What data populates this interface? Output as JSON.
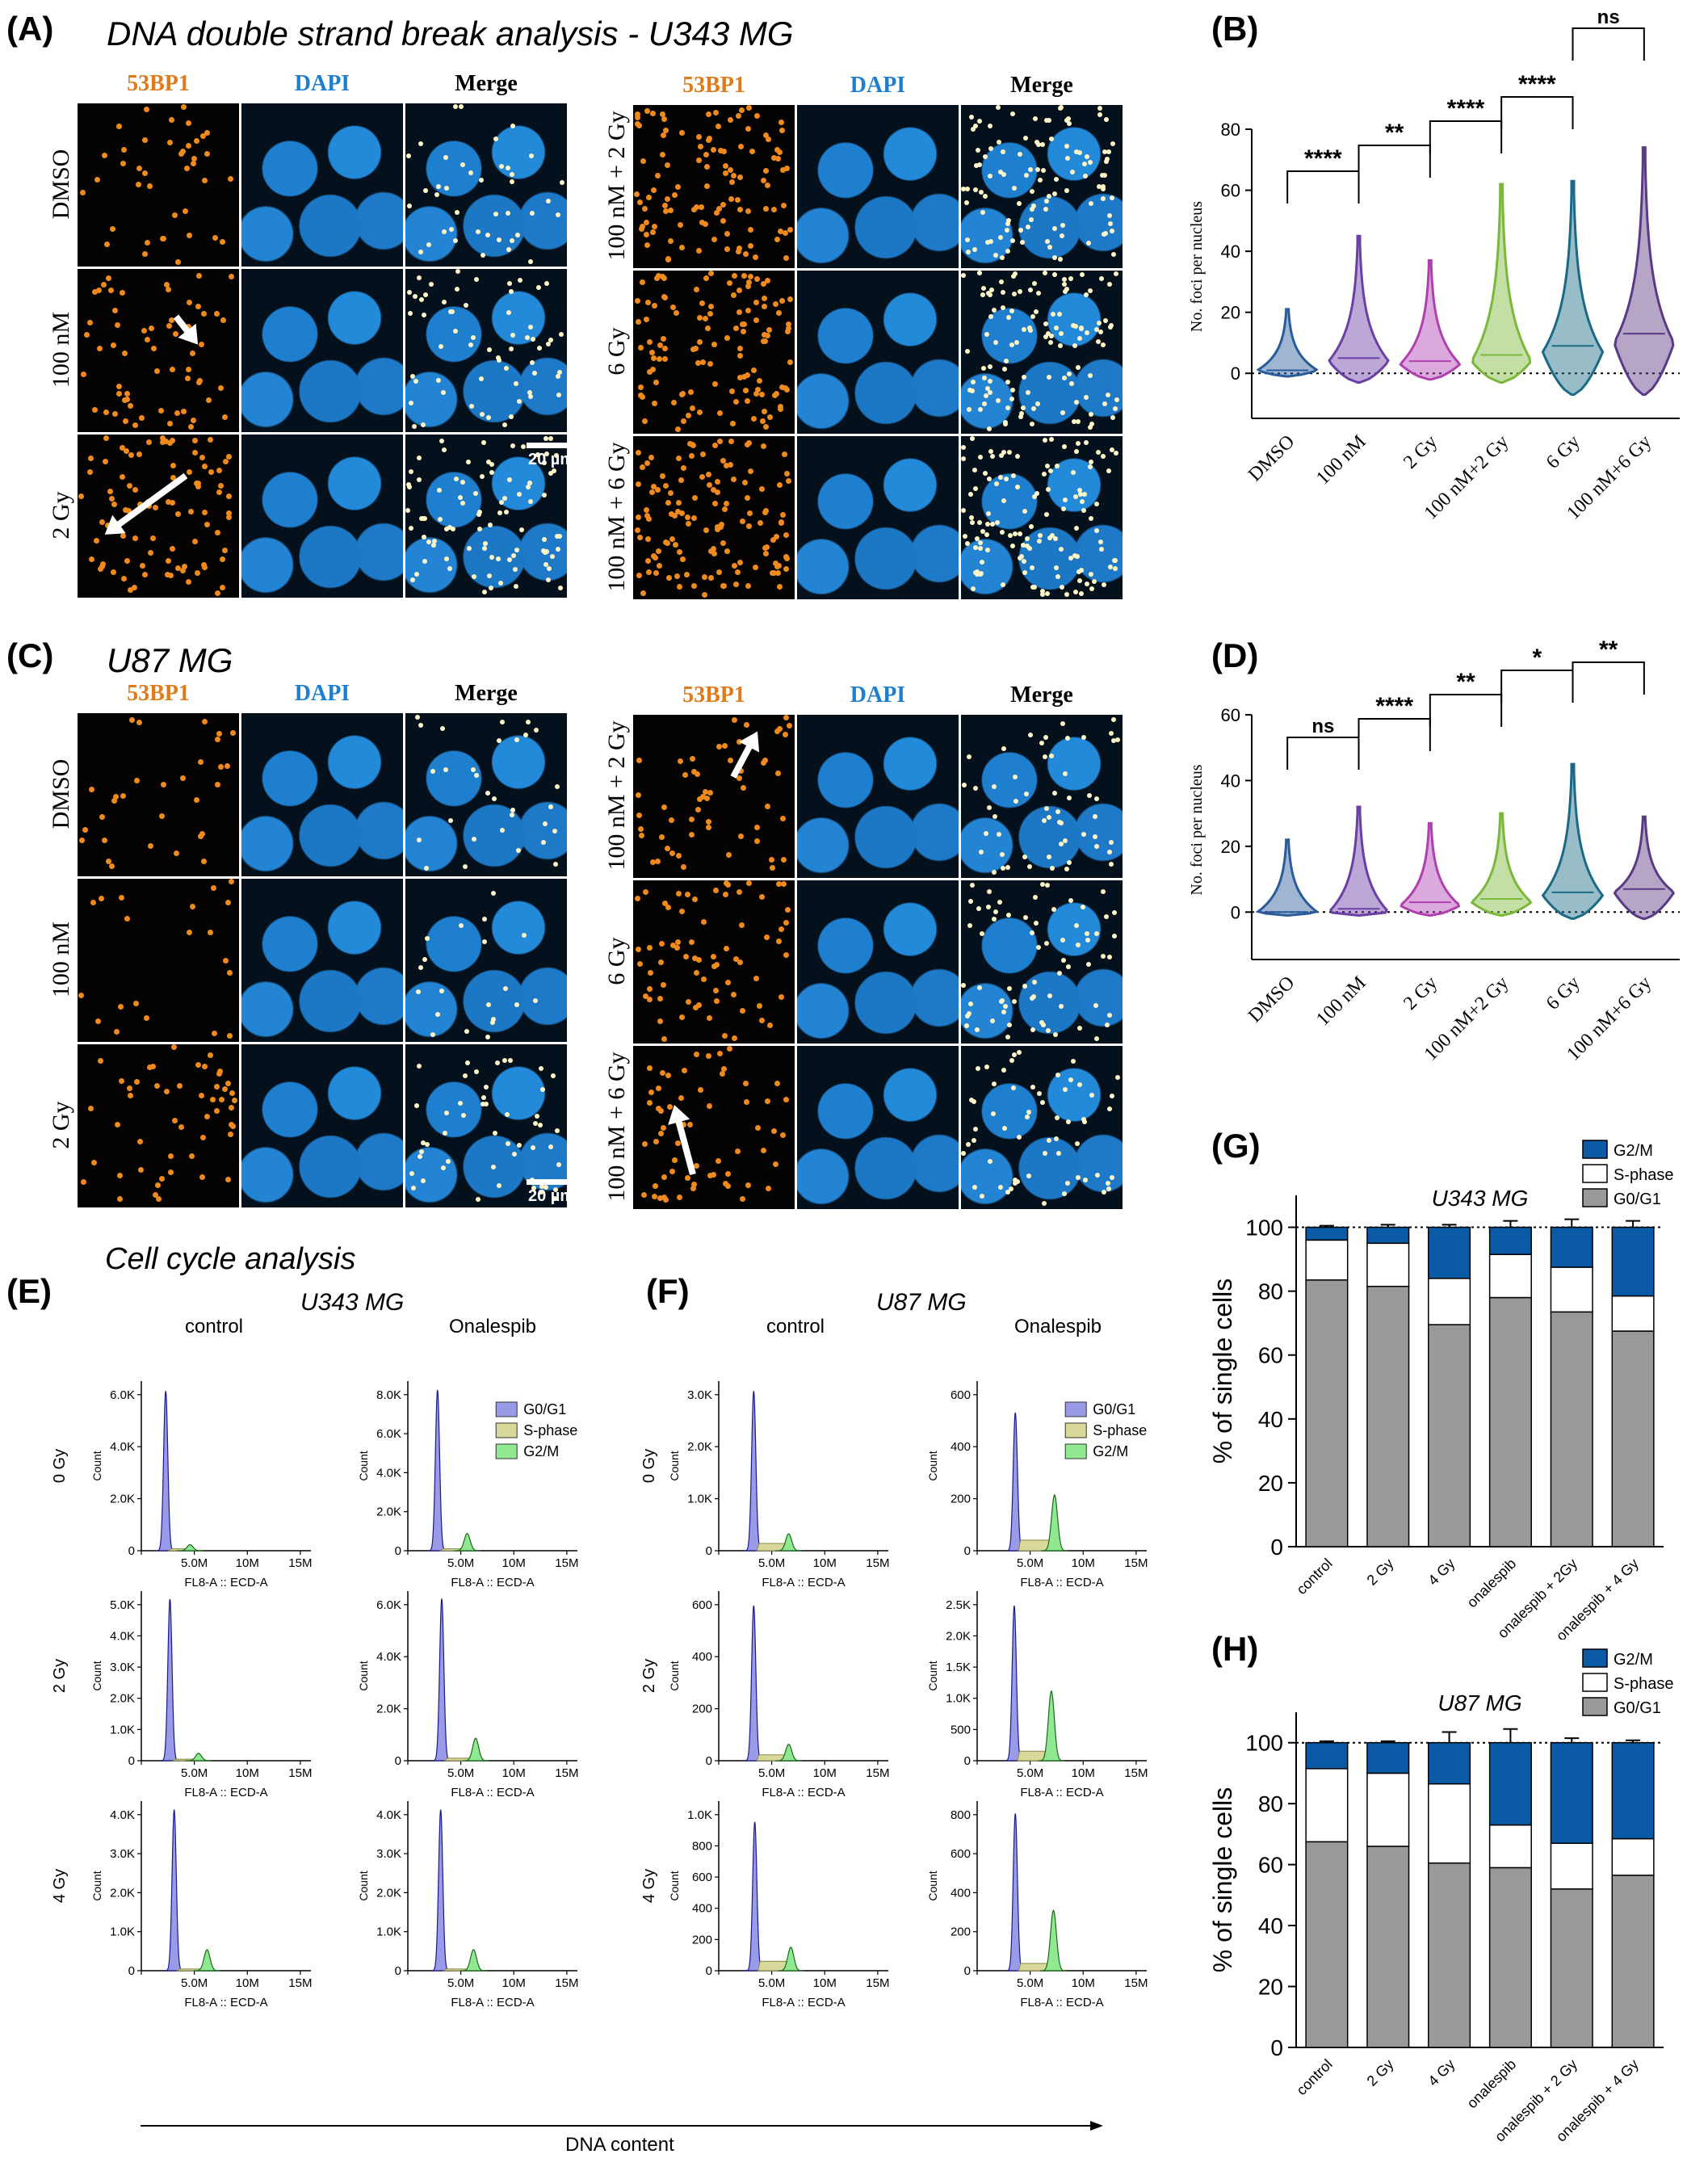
{
  "panel_A": {
    "letter": "(A)",
    "title": "DNA double strand break analysis - U343 MG",
    "left_block": {
      "columns": [
        "53BP1",
        "DAPI",
        "Merge"
      ],
      "rows": [
        "DMSO",
        "100 nM",
        "2 Gy"
      ],
      "scale_bar": "20 µm"
    },
    "right_block": {
      "columns": [
        "53BP1",
        "DAPI",
        "Merge"
      ],
      "rows": [
        "100 nM + 2 Gy",
        "6 Gy",
        "100 nM + 6 Gy"
      ]
    }
  },
  "panel_C": {
    "letter": "(C)",
    "title": "U87 MG",
    "left_block": {
      "columns": [
        "53BP1",
        "DAPI",
        "Merge"
      ],
      "rows": [
        "DMSO",
        "100 nM",
        "2 Gy"
      ],
      "scale_bar": "20 µm"
    },
    "right_block": {
      "columns": [
        "53BP1",
        "DAPI",
        "Merge"
      ],
      "rows": [
        "100 nM + 2 Gy",
        "6 Gy",
        "100 nM + 6 Gy"
      ]
    }
  },
  "cell_cycle": {
    "title": "Cell cycle analysis",
    "x_axis_arrow_label": "DNA content"
  },
  "colors": {
    "foci_orange": "#f08a1c",
    "dapi_blue": "#2389d9",
    "col_header_orange": "#e07a1a",
    "col_header_blue": "#1f7fcf",
    "g2m_blue": "#0a5aa6",
    "g0g1_grey": "#999999",
    "hist_g0g1": "#9a9be8",
    "hist_s": "#d8d89a",
    "hist_g2m": "#90e890"
  },
  "chart_data": [
    {
      "id": "B",
      "letter": "(B)",
      "type": "violin",
      "ylabel": "No. foci per nucleus",
      "ylim": [
        0,
        80
      ],
      "yticks": [
        0,
        20,
        40,
        60,
        80
      ],
      "categories": [
        "DMSO",
        "100 nM",
        "2 Gy",
        "100 nM+2 Gy",
        "6 Gy",
        "100 nM+6 Gy"
      ],
      "colors": [
        "#2a5c9a",
        "#6b3fa6",
        "#b040b0",
        "#7ab83a",
        "#1a6a86",
        "#5a3a86"
      ],
      "max": [
        21,
        45,
        37,
        62,
        63,
        74
      ],
      "min": [
        -1,
        -3,
        -2,
        -3,
        -7,
        -7
      ],
      "median": [
        1,
        5,
        4,
        6,
        9,
        13
      ],
      "widest_at": [
        1,
        4,
        3,
        4,
        7,
        10
      ],
      "significance": [
        {
          "pair": [
            0,
            1
          ],
          "label": "****"
        },
        {
          "pair": [
            1,
            2
          ],
          "label": "**"
        },
        {
          "pair": [
            2,
            3
          ],
          "label": "****"
        },
        {
          "pair": [
            3,
            4
          ],
          "label": "****"
        },
        {
          "pair": [
            4,
            5
          ],
          "label": "ns"
        }
      ]
    },
    {
      "id": "D",
      "letter": "(D)",
      "type": "violin",
      "ylabel": "No. foci per nucleus",
      "ylim": [
        0,
        60
      ],
      "yticks": [
        0,
        20,
        40,
        60
      ],
      "categories": [
        "DMSO",
        "100 nM",
        "2 Gy",
        "100 nM+2 Gy",
        "6 Gy",
        "100 nM+6 Gy"
      ],
      "colors": [
        "#2a5c9a",
        "#6b3fa6",
        "#b040b0",
        "#7ab83a",
        "#1a6a86",
        "#5a3a86"
      ],
      "max": [
        22,
        32,
        27,
        30,
        45,
        29
      ],
      "min": [
        -1,
        -1,
        -1,
        -1,
        -2,
        -2
      ],
      "median": [
        0,
        1,
        3,
        4,
        6,
        7
      ],
      "widest_at": [
        0,
        0,
        2,
        3,
        5,
        6
      ],
      "significance": [
        {
          "pair": [
            0,
            1
          ],
          "label": "ns"
        },
        {
          "pair": [
            1,
            2
          ],
          "label": "****"
        },
        {
          "pair": [
            2,
            3
          ],
          "label": "**"
        },
        {
          "pair": [
            3,
            4
          ],
          "label": "*"
        },
        {
          "pair": [
            4,
            5
          ],
          "label": "**"
        }
      ]
    },
    {
      "id": "G",
      "letter": "(G)",
      "type": "stacked_bar",
      "title": "U343 MG",
      "ylabel": "% of single cells",
      "ylim": [
        0,
        110
      ],
      "yticks": [
        0,
        20,
        40,
        60,
        80,
        100
      ],
      "categories": [
        "control",
        "2 Gy",
        "4 Gy",
        "onalespib",
        "onalespib + 2Gy",
        "onalespib + 4 Gy"
      ],
      "legend": [
        "G2/M",
        "S-phase",
        "G0/G1"
      ],
      "series": [
        {
          "name": "G0/G1",
          "values": [
            83.5,
            81.5,
            69.5,
            78,
            73.5,
            67.5
          ],
          "err": [
            1.2,
            1.5,
            2,
            1.8,
            2.2,
            2.2
          ]
        },
        {
          "name": "S-phase",
          "values": [
            12.5,
            13.5,
            14.5,
            13.5,
            14,
            11
          ],
          "err": [
            1.5,
            1.2,
            3,
            0.8,
            1,
            0.8
          ]
        },
        {
          "name": "G2/M",
          "values": [
            4,
            5,
            16,
            8.5,
            12.5,
            21.5
          ],
          "err": [
            0.5,
            0.8,
            0.8,
            2,
            2.5,
            2
          ]
        }
      ]
    },
    {
      "id": "H",
      "letter": "(H)",
      "type": "stacked_bar",
      "title": "U87 MG",
      "ylabel": "% of single cells",
      "ylim": [
        0,
        110
      ],
      "yticks": [
        0,
        20,
        40,
        60,
        80,
        100
      ],
      "categories": [
        "control",
        "2 Gy",
        "4 Gy",
        "onalespib",
        "onalespib + 2 Gy",
        "onalespib + 4 Gy"
      ],
      "legend": [
        "G2/M",
        "S-phase",
        "G0/G1"
      ],
      "series": [
        {
          "name": "G0/G1",
          "values": [
            67.5,
            66,
            60.5,
            59,
            52,
            56.5
          ],
          "err": [
            1.5,
            2,
            1.2,
            1.2,
            1.5,
            0.5
          ]
        },
        {
          "name": "S-phase",
          "values": [
            24,
            24,
            26,
            14,
            15,
            12
          ],
          "err": [
            1,
            2.5,
            0.8,
            3,
            0.5,
            1
          ]
        },
        {
          "name": "G2/M",
          "values": [
            8.5,
            10,
            13.5,
            27,
            33,
            31.5
          ],
          "err": [
            0.5,
            0.5,
            3.5,
            4.5,
            1.5,
            0.8
          ]
        }
      ]
    },
    {
      "id": "E",
      "letter": "(E)",
      "type": "area",
      "title": "U343 MG",
      "columns": [
        "control",
        "Onalespib"
      ],
      "rows": [
        "0 Gy",
        "2 Gy",
        "4 Gy"
      ],
      "xlabel": "FL8-A :: ECD-A",
      "ylabel": "Count",
      "xticks": [
        "0",
        "5.0M",
        "10M",
        "15M"
      ],
      "xlim": [
        0,
        16
      ],
      "legend": [
        "G0/G1",
        "S-phase",
        "G2/M"
      ],
      "histograms": [
        {
          "row": "0 Gy",
          "col": "control",
          "yticks": [
            "0",
            "2.0K",
            "4.0K",
            "6.0K"
          ],
          "ymax": 6.8,
          "g1_pos": 2.3,
          "g1_h": 6.6,
          "g2_pos": 4.6,
          "g2_h": 0.25,
          "s_h": 0.08
        },
        {
          "row": "0 Gy",
          "col": "Onalespib",
          "yticks": [
            "0",
            "2.0K",
            "4.0K",
            "6.0K",
            "8.0K"
          ],
          "ymax": 8.6,
          "g1_pos": 2.8,
          "g1_h": 8.4,
          "g2_pos": 5.6,
          "g2_h": 0.9,
          "s_h": 0.1
        },
        {
          "row": "2 Gy",
          "col": "control",
          "yticks": [
            "0",
            "1.0K",
            "2.0K",
            "3.0K",
            "4.0K",
            "5.0K"
          ],
          "ymax": 5.6,
          "g1_pos": 2.7,
          "g1_h": 5.5,
          "g2_pos": 5.4,
          "g2_h": 0.25,
          "s_h": 0.05
        },
        {
          "row": "2 Gy",
          "col": "Onalespib",
          "yticks": [
            "0",
            "2.0K",
            "4.0K",
            "6.0K"
          ],
          "ymax": 6.6,
          "g1_pos": 3.2,
          "g1_h": 6.5,
          "g2_pos": 6.4,
          "g2_h": 0.9,
          "s_h": 0.1
        },
        {
          "row": "4 Gy",
          "col": "control",
          "yticks": [
            "0",
            "1.0K",
            "2.0K",
            "3.0K",
            "4.0K"
          ],
          "ymax": 4.7,
          "g1_pos": 3.1,
          "g1_h": 4.6,
          "g2_pos": 6.2,
          "g2_h": 0.6,
          "s_h": 0.05
        },
        {
          "row": "4 Gy",
          "col": "Onalespib",
          "yticks": [
            "0",
            "1.0K",
            "2.0K",
            "3.0K",
            "4.0K"
          ],
          "ymax": 4.7,
          "g1_pos": 3.1,
          "g1_h": 4.6,
          "g2_pos": 6.2,
          "g2_h": 0.6,
          "s_h": 0.05
        }
      ]
    },
    {
      "id": "F",
      "letter": "(F)",
      "type": "area",
      "title": "U87 MG",
      "columns": [
        "control",
        "Onalespib"
      ],
      "rows": [
        "0 Gy",
        "2 Gy",
        "4 Gy"
      ],
      "xlabel": "FL8-A :: ECD-A",
      "ylabel": "Count",
      "xticks": [
        "0",
        "5.0M",
        "10M",
        "15M"
      ],
      "xlim": [
        0,
        16
      ],
      "legend": [
        "G0/G1",
        "S-phase",
        "G2/M"
      ],
      "histograms": [
        {
          "row": "0 Gy",
          "col": "control",
          "yticks": [
            "0",
            "1.0K",
            "2.0K",
            "3.0K"
          ],
          "ymax": 3.4,
          "g1_pos": 3.3,
          "g1_h": 3.3,
          "g2_pos": 6.6,
          "g2_h": 0.35,
          "s_h": 0.15
        },
        {
          "row": "0 Gy",
          "col": "Onalespib",
          "yticks": [
            "0",
            "200",
            "400",
            "600"
          ],
          "ymax": 620,
          "g1_pos": 3.6,
          "g1_h": 520,
          "g2_pos": 7.3,
          "g2_h": 210,
          "s_h": 40
        },
        {
          "row": "2 Gy",
          "col": "control",
          "yticks": [
            "0",
            "200",
            "400",
            "600"
          ],
          "ymax": 700,
          "g1_pos": 3.3,
          "g1_h": 660,
          "g2_pos": 6.6,
          "g2_h": 70,
          "s_h": 25
        },
        {
          "row": "2 Gy",
          "col": "Onalespib",
          "yticks": [
            "0",
            "500",
            "1.0K",
            "1.5K",
            "2.0K",
            "2.5K"
          ],
          "ymax": 2.6,
          "g1_pos": 3.5,
          "g1_h": 2.45,
          "g2_pos": 7.0,
          "g2_h": 1.1,
          "s_h": 0.15
        },
        {
          "row": "4 Gy",
          "col": "control",
          "yticks": [
            "0",
            "200",
            "400",
            "600",
            "800",
            "1.0K"
          ],
          "ymax": 1.05,
          "g1_pos": 3.4,
          "g1_h": 0.95,
          "g2_pos": 6.8,
          "g2_h": 0.15,
          "s_h": 0.06
        },
        {
          "row": "4 Gy",
          "col": "Onalespib",
          "yticks": [
            "0",
            "200",
            "400",
            "600",
            "800"
          ],
          "ymax": 900,
          "g1_pos": 3.6,
          "g1_h": 860,
          "g2_pos": 7.2,
          "g2_h": 330,
          "s_h": 40
        }
      ]
    }
  ]
}
